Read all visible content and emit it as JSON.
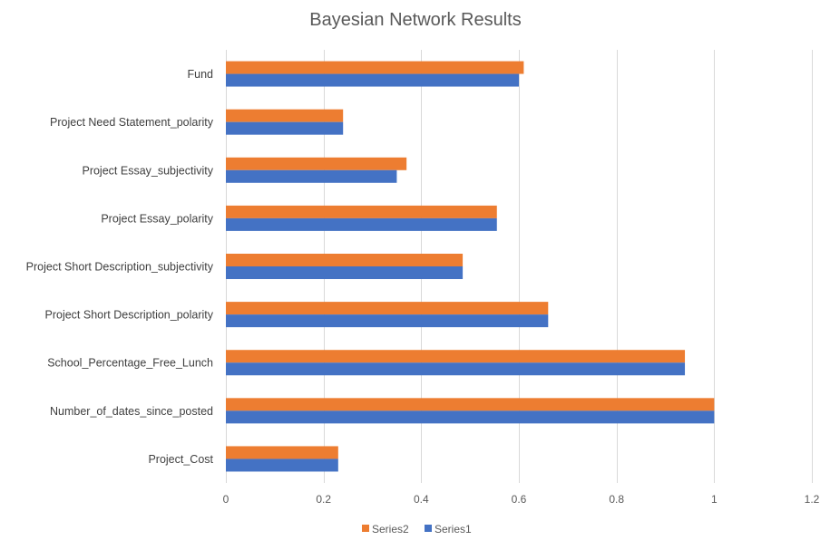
{
  "chart_data": {
    "type": "bar",
    "orientation": "horizontal",
    "title": "Bayesian Network Results",
    "xlabel": "",
    "ylabel": "",
    "xlim": [
      0,
      1.2
    ],
    "x_ticks": [
      0,
      0.2,
      0.4,
      0.6,
      0.8,
      1,
      1.2
    ],
    "x_tick_labels": [
      "0",
      "0.2",
      "0.4",
      "0.6",
      "0.8",
      "1",
      "1.2"
    ],
    "grid": "vertical",
    "legend_position": "bottom",
    "categories": [
      "Fund",
      "Project Need Statement_polarity",
      "Project Essay_subjectivity",
      "Project Essay_polarity",
      "Project Short Description_subjectivity",
      "Project Short Description_polarity",
      "School_Percentage_Free_Lunch",
      "Number_of_dates_since_posted",
      "Project_Cost"
    ],
    "series": [
      {
        "name": "Series2",
        "color": "#ED7D31",
        "values": [
          0.61,
          0.24,
          0.37,
          0.555,
          0.485,
          0.66,
          0.94,
          1.0,
          0.23
        ]
      },
      {
        "name": "Series1",
        "color": "#4472C4",
        "values": [
          0.6,
          0.24,
          0.35,
          0.555,
          0.485,
          0.66,
          0.94,
          1.0,
          0.23
        ]
      }
    ],
    "legend_order": [
      "Series2",
      "Series1"
    ]
  }
}
